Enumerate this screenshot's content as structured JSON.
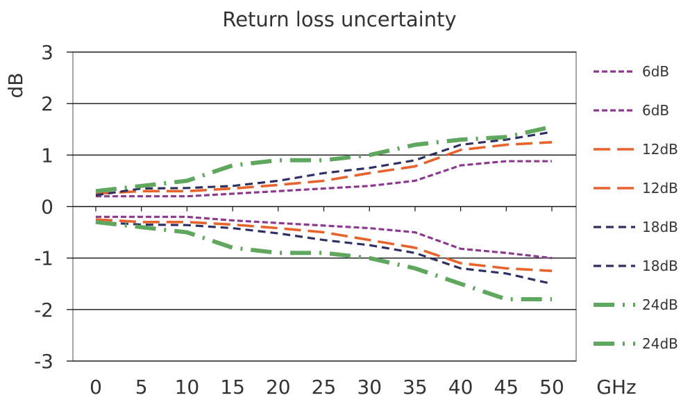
{
  "chart_data": {
    "type": "line",
    "title": "Return loss uncertainty",
    "ylabel": "dB",
    "xlabel": "GHz",
    "x": [
      0,
      5,
      10,
      15,
      20,
      25,
      30,
      35,
      40,
      45,
      50
    ],
    "x_tick_labels": [
      "0",
      "5",
      "10",
      "15",
      "20",
      "25",
      "30",
      "35",
      "40",
      "45",
      "50"
    ],
    "y_tick_labels": [
      "3",
      "2",
      "1",
      "0",
      "-1",
      "-2",
      "-3"
    ],
    "y_ticks": [
      3,
      2,
      1,
      0,
      -1,
      -2,
      -3
    ],
    "xlim": [
      0,
      50
    ],
    "ylim": [
      -3,
      3
    ],
    "grid": true,
    "legend_position": "right",
    "series": [
      {
        "name": "6dB",
        "color": "#8B3A8F",
        "style": "dotted-dash",
        "values": [
          0.2,
          0.2,
          0.2,
          0.25,
          0.3,
          0.35,
          0.4,
          0.5,
          0.8,
          0.88,
          0.88
        ]
      },
      {
        "name": "6dB",
        "color": "#8B3A8F",
        "style": "dotted-dash",
        "values": [
          -0.2,
          -0.2,
          -0.2,
          -0.27,
          -0.32,
          -0.37,
          -0.42,
          -0.5,
          -0.82,
          -0.9,
          -1.0
        ]
      },
      {
        "name": "12dB",
        "color": "#E8622C",
        "style": "long-dash",
        "values": [
          0.25,
          0.3,
          0.3,
          0.35,
          0.42,
          0.5,
          0.65,
          0.78,
          1.1,
          1.2,
          1.25
        ]
      },
      {
        "name": "12dB",
        "color": "#E8622C",
        "style": "long-dash",
        "values": [
          -0.25,
          -0.3,
          -0.3,
          -0.35,
          -0.42,
          -0.5,
          -0.65,
          -0.8,
          -1.1,
          -1.2,
          -1.25
        ]
      },
      {
        "name": "18dB",
        "color": "#2E2F63",
        "style": "short-dash",
        "values": [
          0.22,
          0.35,
          0.36,
          0.4,
          0.5,
          0.65,
          0.75,
          0.9,
          1.2,
          1.3,
          1.45
        ]
      },
      {
        "name": "18dB",
        "color": "#2E2F63",
        "style": "short-dash",
        "values": [
          -0.3,
          -0.35,
          -0.36,
          -0.42,
          -0.52,
          -0.65,
          -0.75,
          -0.9,
          -1.2,
          -1.3,
          -1.5
        ]
      },
      {
        "name": "24dB",
        "color": "#5FA75E",
        "style": "dash-dot",
        "values": [
          0.3,
          0.4,
          0.5,
          0.8,
          0.9,
          0.9,
          1.0,
          1.2,
          1.3,
          1.35,
          1.55
        ]
      },
      {
        "name": "24dB",
        "color": "#5FA75E",
        "style": "dash-dot",
        "values": [
          -0.3,
          -0.4,
          -0.5,
          -0.8,
          -0.9,
          -0.9,
          -1.0,
          -1.2,
          -1.5,
          -1.8,
          -1.8
        ]
      }
    ]
  }
}
